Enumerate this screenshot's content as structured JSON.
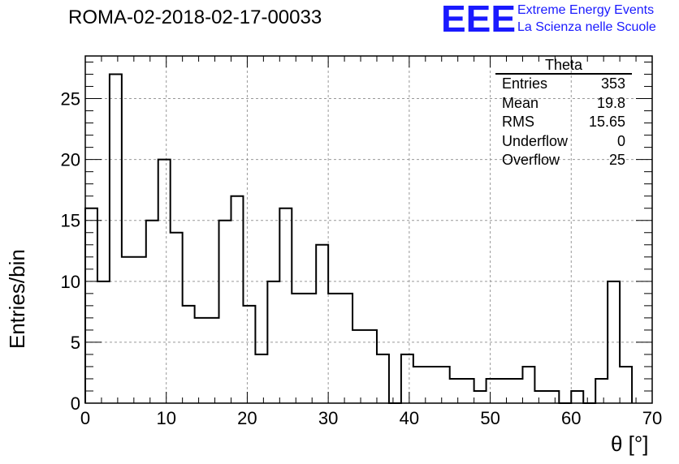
{
  "header": {
    "run_title": "ROMA-02-2018-02-17-00033",
    "logo_text": "EEE",
    "logo_line1": "Extreme Energy Events",
    "logo_line2": "La Scienza nelle Scuole"
  },
  "stats_box": {
    "title": "Theta",
    "rows": [
      {
        "label": "Entries",
        "value": "353"
      },
      {
        "label": "Mean",
        "value": "19.8"
      },
      {
        "label": "RMS",
        "value": "15.65"
      },
      {
        "label": "Underflow",
        "value": "0"
      },
      {
        "label": "Overflow",
        "value": "25"
      }
    ]
  },
  "chart_data": {
    "type": "bar",
    "histogram": true,
    "title": "ROMA-02-2018-02-17-00033",
    "xlabel": "θ [°]",
    "ylabel": "Entries/bin",
    "xlim": [
      0,
      70
    ],
    "ylim": [
      0,
      28.5
    ],
    "bin_width": 1.5,
    "bin_start": 0,
    "values": [
      16,
      10,
      27,
      12,
      12,
      15,
      20,
      14,
      8,
      7,
      7,
      15,
      17,
      8,
      4,
      10,
      16,
      9,
      9,
      13,
      9,
      9,
      6,
      6,
      4,
      0,
      4,
      3,
      3,
      3,
      2,
      2,
      1,
      2,
      2,
      2,
      3,
      1,
      1,
      0,
      1,
      0,
      2,
      10,
      3
    ],
    "x_ticks": [
      0,
      10,
      20,
      30,
      40,
      50,
      60,
      70
    ],
    "y_ticks": [
      0,
      5,
      10,
      15,
      20,
      25
    ],
    "grid": true,
    "line_color": "#000000",
    "grid_color": "#999999"
  }
}
